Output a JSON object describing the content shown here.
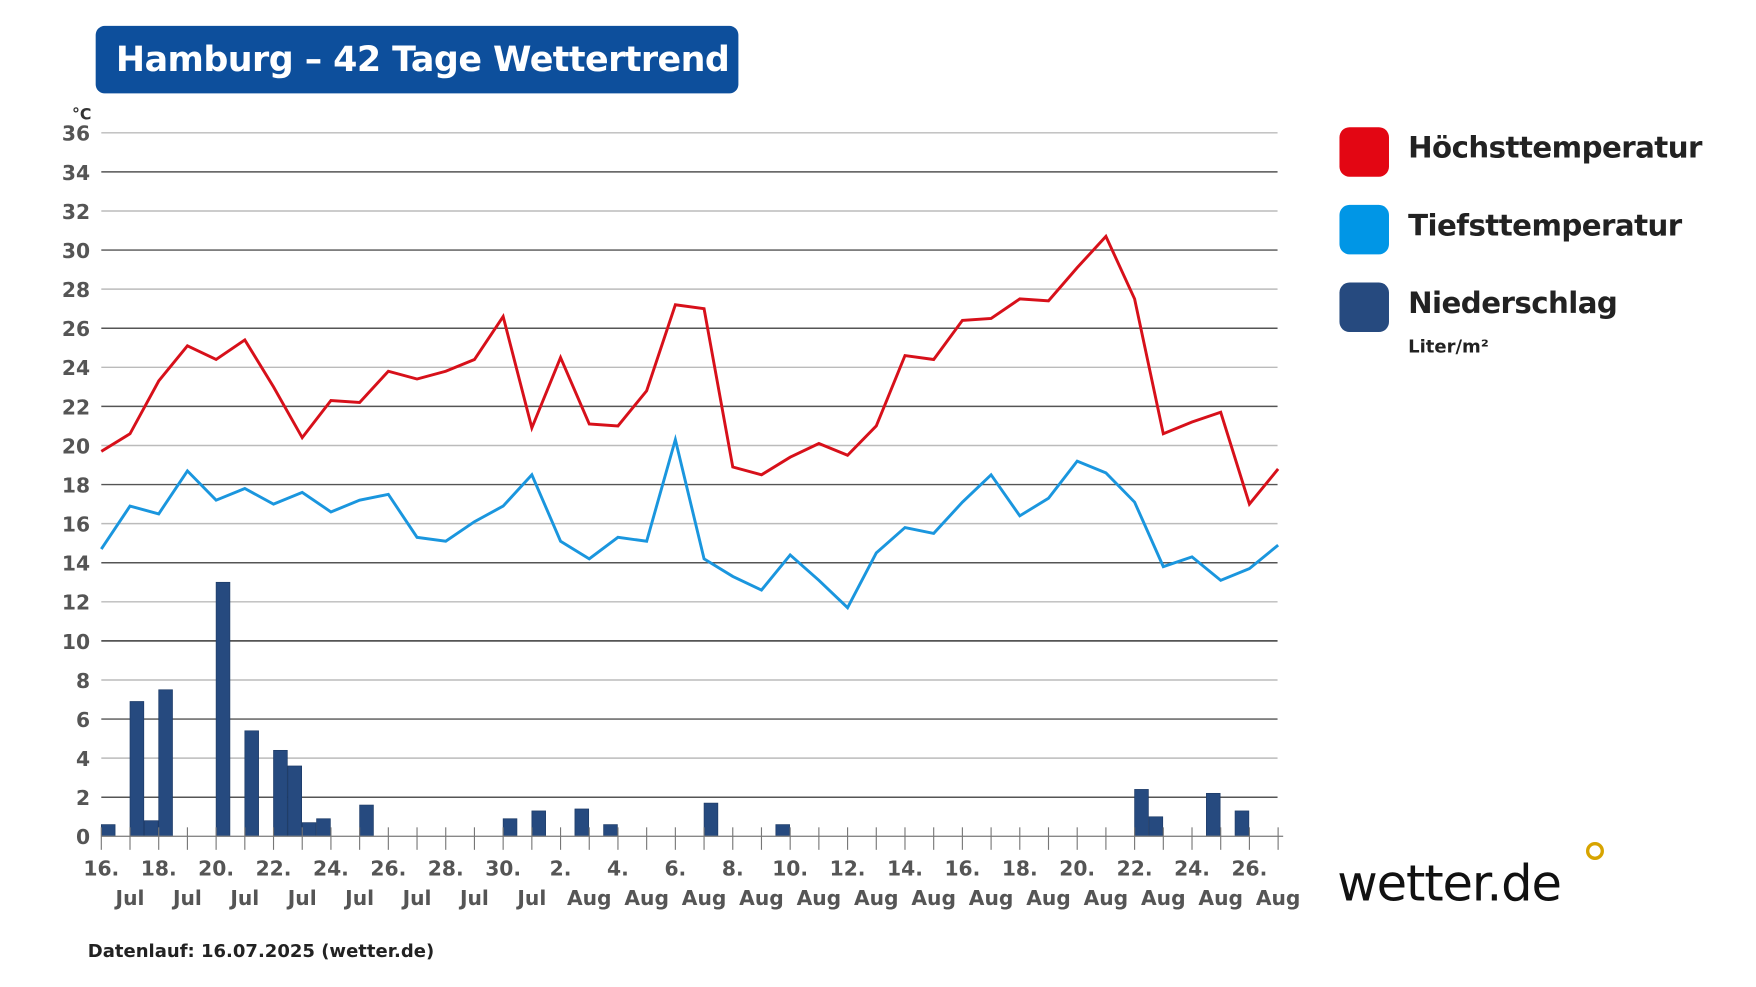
{
  "title": "Hamburg – 42 Tage Wettertrend",
  "footer": "Datenlauf: 16.07.2025 (wetter.de)",
  "logo": "wetter.de",
  "legend": [
    {
      "label": "Höchsttemperatur",
      "color": "#e30613"
    },
    {
      "label": "Tiefsttemperatur",
      "color": "#0096e6"
    },
    {
      "label": "Niederschlag",
      "color": "#264a7f",
      "unit": "Liter/m²"
    }
  ],
  "chart_data": {
    "type": "line+bar",
    "ylabel": "°C",
    "ylim": [
      0,
      36
    ],
    "yticks": [
      "0",
      "2",
      "4",
      "6",
      "8",
      "10",
      "12",
      "14",
      "16",
      "18",
      "20",
      "22",
      "24",
      "26",
      "28",
      "30",
      "32",
      "34",
      "36"
    ],
    "grid": true,
    "legend_position": "right",
    "xtick_labels": [
      {
        "day": "16.",
        "month": "Jul"
      },
      {
        "day": "18.",
        "month": "Jul"
      },
      {
        "day": "20.",
        "month": "Jul"
      },
      {
        "day": "22.",
        "month": "Jul"
      },
      {
        "day": "24.",
        "month": "Jul"
      },
      {
        "day": "26.",
        "month": "Jul"
      },
      {
        "day": "28.",
        "month": "Jul"
      },
      {
        "day": "30.",
        "month": "Jul"
      },
      {
        "day": "2.",
        "month": "Aug"
      },
      {
        "day": "4.",
        "month": "Aug"
      },
      {
        "day": "6.",
        "month": "Aug"
      },
      {
        "day": "8.",
        "month": "Aug"
      },
      {
        "day": "10.",
        "month": "Aug"
      },
      {
        "day": "12.",
        "month": "Aug"
      },
      {
        "day": "14.",
        "month": "Aug"
      },
      {
        "day": "16.",
        "month": "Aug"
      },
      {
        "day": "18.",
        "month": "Aug"
      },
      {
        "day": "20.",
        "month": "Aug"
      },
      {
        "day": "22.",
        "month": "Aug"
      },
      {
        "day": "24.",
        "month": "Aug"
      },
      {
        "day": "26.",
        "month": "Aug"
      }
    ],
    "series": [
      {
        "name": "Höchsttemperatur",
        "type": "line",
        "color": "#d7101a",
        "values": [
          19.7,
          20.6,
          23.3,
          25.1,
          24.4,
          25.4,
          23.0,
          20.4,
          22.3,
          22.2,
          23.8,
          23.4,
          23.8,
          24.4,
          26.6,
          20.9,
          24.5,
          21.1,
          21.0,
          22.8,
          27.2,
          27.0,
          18.9,
          18.5,
          19.4,
          20.1,
          19.5,
          21.0,
          24.6,
          24.4,
          26.4,
          26.5,
          27.5,
          27.4,
          29.1,
          30.7,
          27.5,
          20.6,
          21.2,
          21.7,
          17.0,
          18.8
        ]
      },
      {
        "name": "Tiefsttemperatur",
        "type": "line",
        "color": "#1a96de",
        "values": [
          14.7,
          16.9,
          16.5,
          18.7,
          17.2,
          17.8,
          17.0,
          17.6,
          16.6,
          17.2,
          17.5,
          15.3,
          15.1,
          16.1,
          16.9,
          18.5,
          15.1,
          14.2,
          15.3,
          15.1,
          20.3,
          14.2,
          13.3,
          12.6,
          14.4,
          13.1,
          11.7,
          14.5,
          15.8,
          15.5,
          17.1,
          18.5,
          16.4,
          17.3,
          19.2,
          18.6,
          17.1,
          13.8,
          14.3,
          13.1,
          13.7,
          14.9
        ]
      },
      {
        "name": "Niederschlag",
        "type": "bar",
        "color": "#264a7f",
        "unit": "Liter/m²",
        "resolution": "half-day",
        "values": [
          0.6,
          0,
          6.9,
          0.8,
          7.5,
          0,
          0,
          0,
          13.0,
          0,
          5.4,
          0,
          4.4,
          3.6,
          0.7,
          0.9,
          0,
          0,
          1.6,
          0,
          0,
          0,
          0,
          0,
          0,
          0,
          0,
          0,
          0.9,
          0,
          1.3,
          0,
          0,
          1.4,
          0,
          0.6,
          0,
          0,
          0,
          0,
          0,
          0,
          1.7,
          0,
          0,
          0,
          0,
          0.6,
          0,
          0,
          0,
          0,
          0,
          0,
          0,
          0,
          0,
          0,
          0,
          0,
          0,
          0,
          0,
          0,
          0,
          0,
          0,
          0,
          0,
          0,
          0,
          0,
          2.4,
          1.0,
          0,
          0,
          0,
          2.2,
          0,
          1.3,
          0,
          0,
          0,
          0
        ]
      }
    ]
  }
}
